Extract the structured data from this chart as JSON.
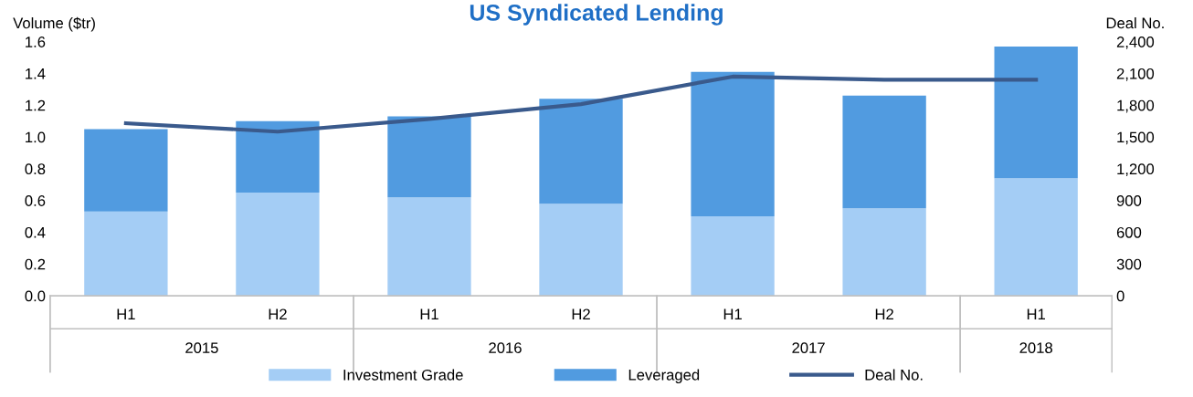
{
  "chart_data": {
    "type": "bar",
    "title": "US Syndicated Lending",
    "ylabel": "Volume ($tr)",
    "y2label": "Deal No.",
    "categories": [
      "H1",
      "H2",
      "H1",
      "H2",
      "H1",
      "H2",
      "H1"
    ],
    "annotations": [
      "2015",
      "2016",
      "2017",
      "2018"
    ],
    "stacked": true,
    "series": [
      {
        "name": "Investment Grade",
        "color": "#a4cdf5",
        "values": [
          0.53,
          0.65,
          0.62,
          0.58,
          0.5,
          0.55,
          0.74
        ]
      },
      {
        "name": "Leveraged",
        "color": "#519be0",
        "values": [
          0.52,
          0.45,
          0.51,
          0.66,
          0.91,
          0.71,
          0.83
        ]
      },
      {
        "name": "Deal No.",
        "type": "line",
        "axis": "y2",
        "color": "#3a5a8c",
        "values": [
          1630,
          1550,
          1670,
          1810,
          2070,
          2040,
          2040
        ]
      }
    ],
    "ylim": [
      0,
      1.6
    ],
    "yticks": [
      {
        "value": 0,
        "label": "0.0"
      },
      {
        "value": 0.2,
        "label": "0.2"
      },
      {
        "value": 0.4,
        "label": "0.4"
      },
      {
        "value": 0.6,
        "label": "0.6"
      },
      {
        "value": 0.8,
        "label": "0.8"
      },
      {
        "value": 1.0,
        "label": "1.0"
      },
      {
        "value": 1.2,
        "label": "1.2"
      },
      {
        "value": 1.4,
        "label": "1.4"
      },
      {
        "value": 1.6,
        "label": "1.6"
      }
    ],
    "y2lim": [
      0,
      2400
    ],
    "y2ticks": [
      0,
      300,
      600,
      900,
      {
        "value": 1200,
        "label": "1,200"
      },
      {
        "value": 1500,
        "label": "1,500"
      },
      {
        "value": 1800,
        "label": "1,800"
      },
      {
        "value": 2100,
        "label": "2,100"
      },
      {
        "value": 2400,
        "label": "2,400"
      }
    ],
    "grid": false,
    "legend": "bottom",
    "marker": "none",
    "line_style": "solid"
  }
}
